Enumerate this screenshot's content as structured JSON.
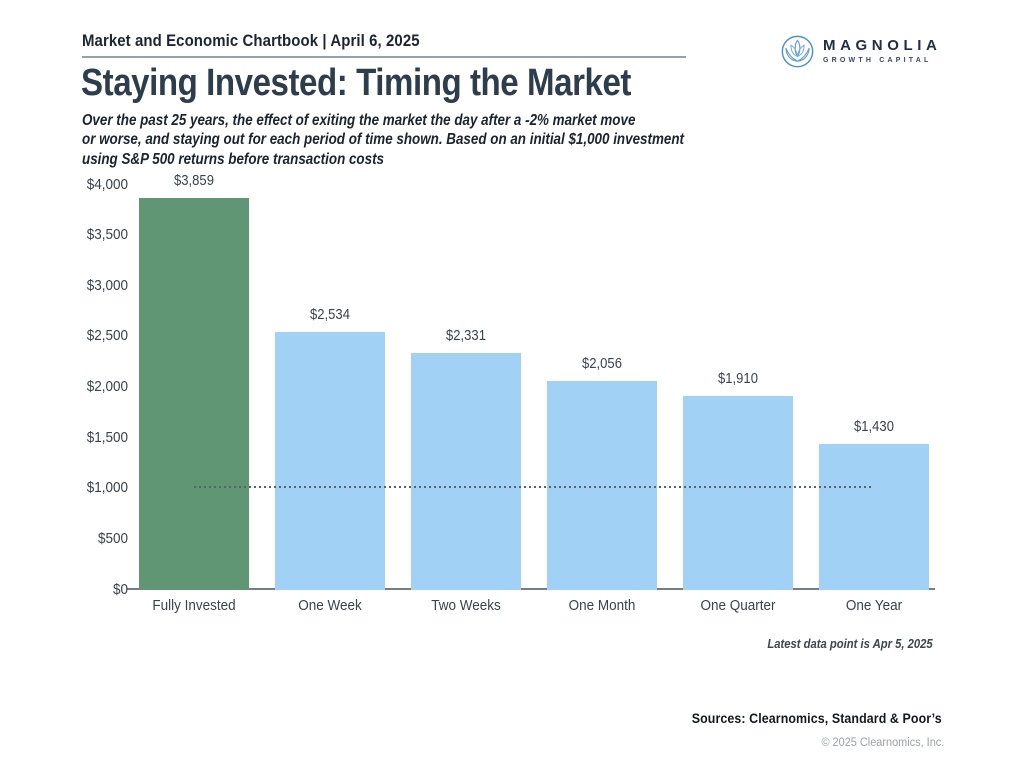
{
  "page": {
    "header": "Market and Economic Chartbook | April 6, 2025",
    "logo": {
      "wordmark": "MAGNOLIA",
      "tagline": "GROWTH CAPITAL",
      "icon": "lotus-flower-icon",
      "icon_color": "#4E8FD0",
      "wordmark_color": "#232D47"
    },
    "title": "Staying Invested: Timing the Market",
    "subtitle_lines": [
      "Over the past 25 years, the effect of exiting the market the day after a -2% market move",
      "or worse, and staying out for each period of time shown. Based on an initial $1,000 investment",
      "using S&P 500 returns before transaction costs"
    ],
    "footnote": "Latest data point is Apr 5, 2025",
    "sources": "Sources: Clearnomics, Standard & Poor’s",
    "copyright": "© 2025 Clearnomics, Inc."
  },
  "chart_data": {
    "type": "bar",
    "title": "Staying Invested: Timing the Market",
    "categories": [
      "Fully Invested",
      "One Week",
      "Two Weeks",
      "One Month",
      "One Quarter",
      "One Year"
    ],
    "values": [
      3859,
      2534,
      2331,
      2056,
      1910,
      1430
    ],
    "value_labels": [
      "$3,859",
      "$2,534",
      "$2,331",
      "$2,056",
      "$1,910",
      "$1,430"
    ],
    "bar_colors": [
      "#609673",
      "#A1D1F4",
      "#A1D1F4",
      "#A1D1F4",
      "#A1D1F4",
      "#A1D1F4"
    ],
    "xlabel": "",
    "ylabel": "",
    "ylim": [
      0,
      4000
    ],
    "y_ticks": {
      "values": [
        4000,
        3500,
        3000,
        2500,
        2000,
        1500,
        1000,
        500,
        0
      ],
      "labels": [
        "$4,000",
        "$3,500",
        "$3,000",
        "$2,500",
        "$2,000",
        "$1,500",
        "$1,000",
        "$500",
        "$0"
      ]
    },
    "reference_line": {
      "value": 1000,
      "style": "dotted",
      "color": "#59616A"
    },
    "grid": false,
    "legend": false,
    "axis_color": "#757D84"
  }
}
